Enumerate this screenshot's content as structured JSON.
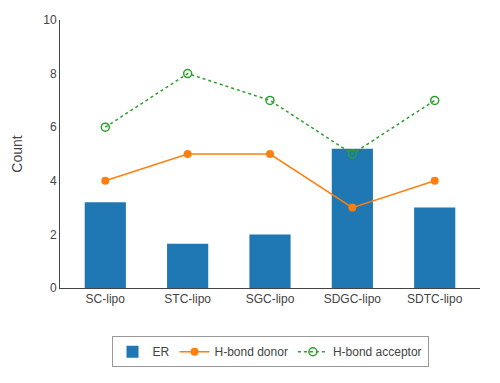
{
  "chart_data": {
    "type": "bar",
    "categories": [
      "SC-lipo",
      "STC-lipo",
      "SGC-lipo",
      "SDGC-lipo",
      "SDTC-lipo"
    ],
    "ylabel": "Count",
    "ylim": [
      0,
      10
    ],
    "yticks": [
      0,
      2,
      4,
      6,
      8,
      10
    ],
    "grid": false,
    "legend": "bottom",
    "series": [
      {
        "name": "ER",
        "type": "bar",
        "values": [
          3.2,
          1.65,
          2.0,
          5.2,
          3.0
        ]
      },
      {
        "name": "H-bond donor",
        "type": "line",
        "line_style": "solid",
        "marker": "circle",
        "values": [
          4,
          5,
          5,
          3,
          4
        ]
      },
      {
        "name": "H-bond acceptor",
        "type": "line",
        "line_style": "dotted",
        "marker": "circle-open",
        "values": [
          6,
          8,
          7,
          5,
          7
        ]
      }
    ]
  }
}
